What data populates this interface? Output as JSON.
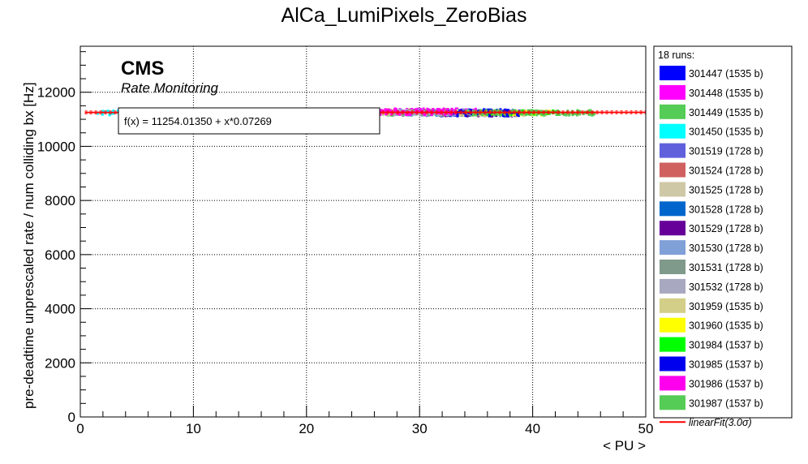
{
  "chart_data": {
    "type": "scatter",
    "title": "AlCa_LumiPixels_ZeroBias",
    "xlabel": "< PU >",
    "ylabel": "pre-deadtime unprescaled rate / num colliding bx [Hz]",
    "xlim": [
      0,
      50
    ],
    "ylim": [
      0,
      13700
    ],
    "x_ticks": [
      "0",
      "10",
      "20",
      "30",
      "40",
      "50"
    ],
    "y_ticks": [
      "0",
      "2000",
      "4000",
      "6000",
      "8000",
      "10000",
      "12000"
    ],
    "x_tick_values": [
      0,
      10,
      20,
      30,
      40,
      50
    ],
    "y_tick_values": [
      0,
      2000,
      4000,
      6000,
      8000,
      10000,
      12000
    ],
    "grid": true,
    "legend_position": "right",
    "legend_header": "18 runs:",
    "series": [
      {
        "name": "301447 (1535 b)",
        "color": "#0000ff",
        "pu_range": [
          30.0,
          39.0
        ],
        "rate_range": [
          11150,
          11350
        ]
      },
      {
        "name": "301448 (1535 b)",
        "color": "#ff00ff",
        "pu_range": [
          27.5,
          35.5
        ],
        "rate_range": [
          11180,
          11380
        ]
      },
      {
        "name": "301449 (1535 b)",
        "color": "#55cc55",
        "pu_range": [
          25.0,
          33.0
        ],
        "rate_range": [
          11150,
          11330
        ]
      },
      {
        "name": "301450 (1535 b)",
        "color": "#00ffff",
        "pu_range": [
          1.5,
          8.0
        ],
        "rate_range": [
          11170,
          11320
        ]
      },
      {
        "name": "301519 (1728 b)",
        "color": "#6060dd",
        "pu_range": [
          30.0,
          38.5
        ],
        "rate_range": [
          11120,
          11320
        ]
      },
      {
        "name": "301524 (1728 b)",
        "color": "#d06060",
        "pu_range": [
          27.0,
          34.0
        ],
        "rate_range": [
          11180,
          11360
        ]
      },
      {
        "name": "301525 (1728 b)",
        "color": "#cfc8a6",
        "pu_range": [
          26.0,
          33.0
        ],
        "rate_range": [
          11170,
          11330
        ]
      },
      {
        "name": "301528 (1728 b)",
        "color": "#0066cc",
        "pu_range": [
          31.0,
          38.5
        ],
        "rate_range": [
          11140,
          11300
        ]
      },
      {
        "name": "301529 (1728 b)",
        "color": "#660099",
        "pu_range": [
          32.0,
          39.0
        ],
        "rate_range": [
          11130,
          11310
        ]
      },
      {
        "name": "301530 (1728 b)",
        "color": "#80a0d8",
        "pu_range": [
          28.0,
          35.0
        ],
        "rate_range": [
          11160,
          11340
        ]
      },
      {
        "name": "301531 (1728 b)",
        "color": "#7f9a8a",
        "pu_range": [
          28.5,
          35.5
        ],
        "rate_range": [
          11150,
          11320
        ]
      },
      {
        "name": "301532 (1728 b)",
        "color": "#a8a8c0",
        "pu_range": [
          27.0,
          34.0
        ],
        "rate_range": [
          11170,
          11330
        ]
      },
      {
        "name": "301959 (1535 b)",
        "color": "#d3ce88",
        "pu_range": [
          33.0,
          41.5
        ],
        "rate_range": [
          11150,
          11320
        ]
      },
      {
        "name": "301960 (1535 b)",
        "color": "#ffff00",
        "pu_range": [
          35.0,
          42.0
        ],
        "rate_range": [
          11160,
          11300
        ]
      },
      {
        "name": "301984 (1537 b)",
        "color": "#00ff00",
        "pu_range": [
          36.0,
          43.0
        ],
        "rate_range": [
          11170,
          11310
        ]
      },
      {
        "name": "301985 (1537 b)",
        "color": "#0000ee",
        "pu_range": [
          33.0,
          39.0
        ],
        "rate_range": [
          11130,
          11340
        ]
      },
      {
        "name": "301986 (1537 b)",
        "color": "#ff00ee",
        "pu_range": [
          26.5,
          33.5
        ],
        "rate_range": [
          11170,
          11360
        ]
      },
      {
        "name": "301987 (1537 b)",
        "color": "#55cc55",
        "pu_range": [
          34.0,
          45.5
        ],
        "rate_range": [
          11160,
          11320
        ]
      }
    ],
    "fit": {
      "name": "linearFit(3.0σ)",
      "label": "f(x) = 11254.01350 + x*0.07269",
      "intercept": 11254.0135,
      "slope": 0.07269,
      "color": "#ff0000",
      "band_sigma": 50
    },
    "annotations": {
      "cms": "CMS",
      "subtitle": "Rate Monitoring"
    }
  }
}
